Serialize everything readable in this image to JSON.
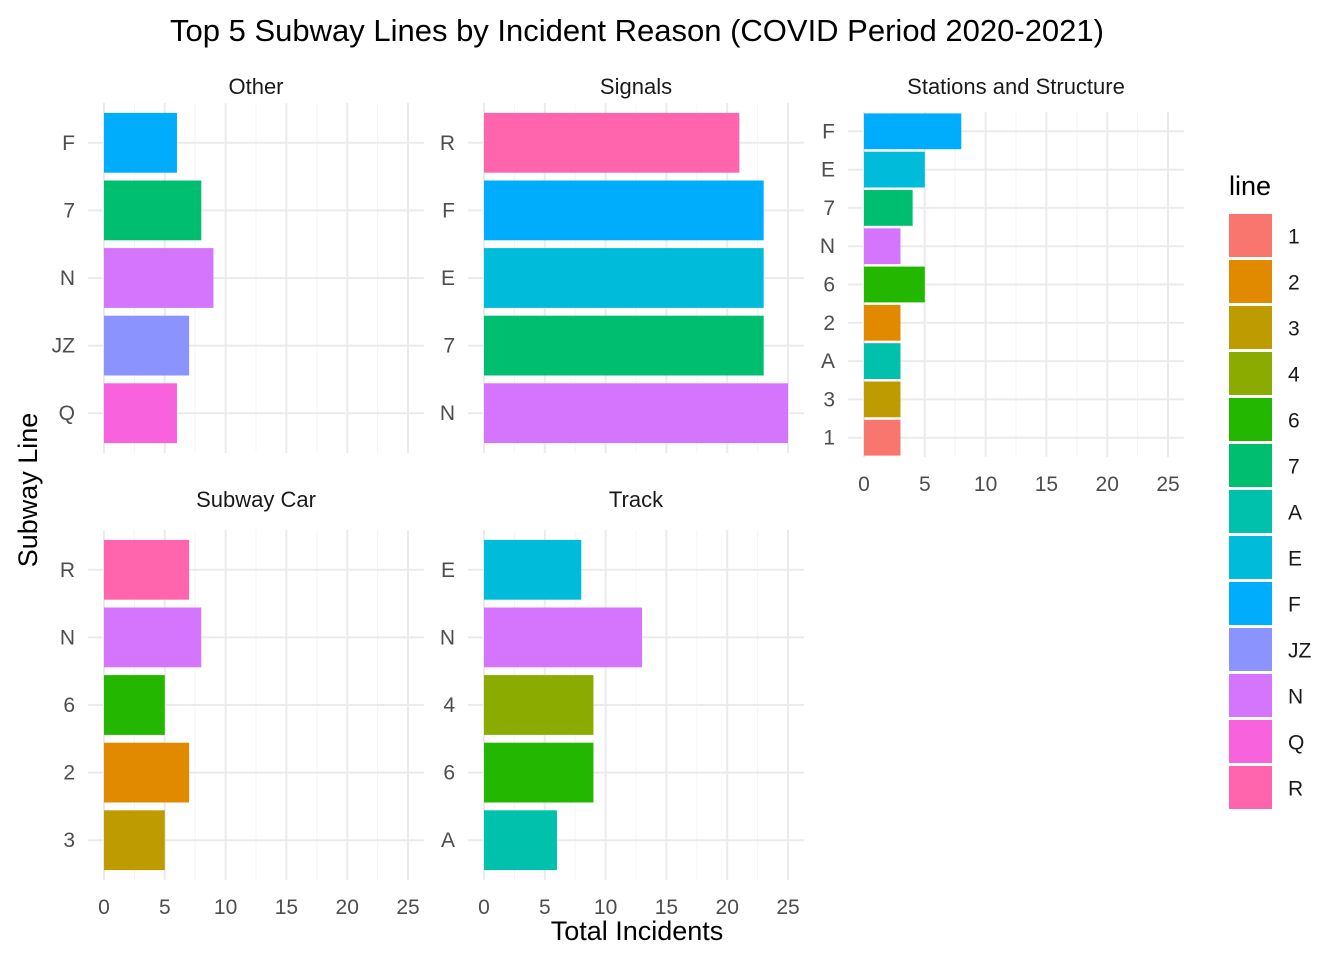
{
  "chart_data": {
    "type": "bar",
    "orientation": "horizontal",
    "title": "Top 5 Subway Lines by Incident Reason (COVID Period 2020-2021)",
    "xlabel": "Total Incidents",
    "ylabel": "Subway Line",
    "xlim": [
      0,
      25
    ],
    "xticks": [
      0,
      5,
      10,
      15,
      20,
      25
    ],
    "legend": {
      "title": "line",
      "position": "right",
      "items": [
        {
          "label": "1",
          "color": "#F8766D"
        },
        {
          "label": "2",
          "color": "#E18A00"
        },
        {
          "label": "3",
          "color": "#BE9C00"
        },
        {
          "label": "4",
          "color": "#8CAB00"
        },
        {
          "label": "6",
          "color": "#24B700"
        },
        {
          "label": "7",
          "color": "#00BE70"
        },
        {
          "label": "A",
          "color": "#00C1AB"
        },
        {
          "label": "E",
          "color": "#00BBDA"
        },
        {
          "label": "F",
          "color": "#00ACFC"
        },
        {
          "label": "JZ",
          "color": "#8B93FF"
        },
        {
          "label": "N",
          "color": "#D575FE"
        },
        {
          "label": "Q",
          "color": "#F962DD"
        },
        {
          "label": "R",
          "color": "#FF65AC"
        }
      ]
    },
    "panels": [
      {
        "name": "Other",
        "categories": [
          "F",
          "7",
          "N",
          "JZ",
          "Q"
        ],
        "values": [
          6,
          8,
          9,
          7,
          6
        ]
      },
      {
        "name": "Signals",
        "categories": [
          "R",
          "F",
          "E",
          "7",
          "N"
        ],
        "values": [
          21,
          23,
          23,
          23,
          25
        ]
      },
      {
        "name": "Stations and Structure",
        "categories": [
          "F",
          "E",
          "7",
          "N",
          "6",
          "2",
          "A",
          "3",
          "1"
        ],
        "values": [
          8,
          5,
          4,
          3,
          5,
          3,
          3,
          3,
          3
        ]
      },
      {
        "name": "Subway Car",
        "categories": [
          "R",
          "N",
          "6",
          "2",
          "3"
        ],
        "values": [
          7,
          8,
          5,
          7,
          5
        ]
      },
      {
        "name": "Track",
        "categories": [
          "E",
          "N",
          "4",
          "6",
          "A"
        ],
        "values": [
          8,
          13,
          9,
          9,
          6
        ]
      }
    ]
  }
}
